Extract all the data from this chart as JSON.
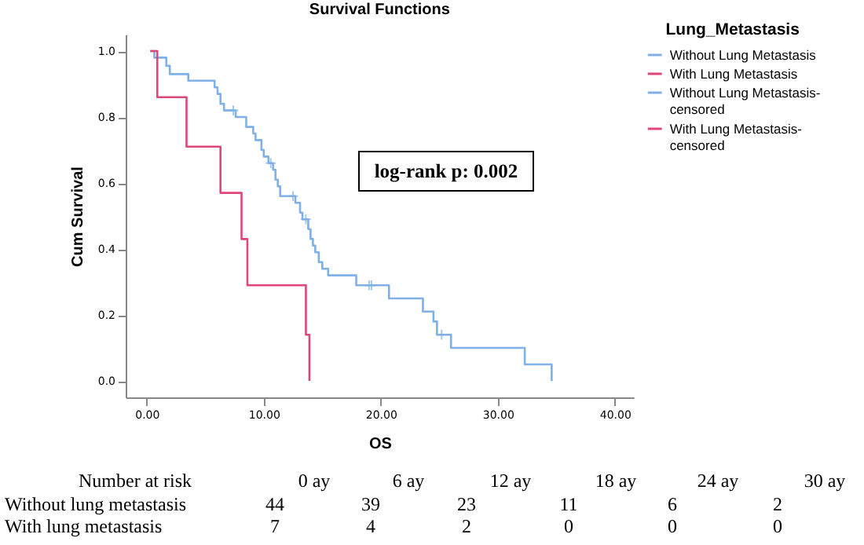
{
  "chart_data": {
    "type": "step",
    "title": "Survival Functions",
    "xlabel": "OS",
    "ylabel": "Cum Survival",
    "legend_title": "Lung_Metastasis",
    "legend": "top right",
    "grid": false,
    "xlim": [
      -1.8,
      41.6
    ],
    "xticks": [
      {
        "value": 0,
        "label": "0.00"
      },
      {
        "value": 10,
        "label": "10.00"
      },
      {
        "value": 20,
        "label": "20.00"
      },
      {
        "value": 30,
        "label": "30.00"
      },
      {
        "value": 40,
        "label": "40.00"
      }
    ],
    "ylim": [
      -0.05,
      1.05
    ],
    "yticks": [
      {
        "value": 0,
        "label": "0.0"
      },
      {
        "value": 0.2,
        "label": "0.2"
      },
      {
        "value": 0.4,
        "label": "0.4"
      },
      {
        "value": 0.6,
        "label": "0.6"
      },
      {
        "value": 0.8,
        "label": "0.8"
      },
      {
        "value": 1,
        "label": "1.0"
      }
    ],
    "series": [
      {
        "name": "Without Lung Metastasis",
        "color": "#7fb0e8",
        "x": [
          0.3,
          0.65,
          1.67,
          1.97,
          3.55,
          5.8,
          6.05,
          6.3,
          6.6,
          7.6,
          8.5,
          9.1,
          9.3,
          9.8,
          10.0,
          10.4,
          10.8,
          11.0,
          11.2,
          11.4,
          12.7,
          13.1,
          13.3,
          13.8,
          14.0,
          14.2,
          14.4,
          14.7,
          15.0,
          15.5,
          17.9,
          20.7,
          23.6,
          24.5,
          24.8,
          26.0,
          32.3,
          34.6
        ],
        "values": [
          1.0,
          0.98,
          0.955,
          0.93,
          0.91,
          0.89,
          0.87,
          0.84,
          0.82,
          0.8,
          0.77,
          0.75,
          0.73,
          0.7,
          0.68,
          0.66,
          0.64,
          0.61,
          0.59,
          0.56,
          0.54,
          0.51,
          0.49,
          0.46,
          0.43,
          0.41,
          0.39,
          0.36,
          0.34,
          0.32,
          0.29,
          0.25,
          0.21,
          0.18,
          0.14,
          0.1,
          0.05,
          0.0
        ]
      },
      {
        "name": "With Lung Metastasis",
        "color": "#e0457b",
        "x": [
          0.3,
          0.9,
          3.4,
          6.3,
          8.1,
          8.6,
          13.6,
          13.9
        ],
        "values": [
          1.0,
          0.86,
          0.71,
          0.57,
          0.43,
          0.29,
          0.14,
          0.0
        ]
      },
      {
        "name": "Without Lung Metastasis-censored",
        "type": "scatter",
        "marker": "cross",
        "color": "#7fb0e8",
        "x": [
          7.4,
          10.6,
          12.5,
          13.6,
          19.0,
          19.2,
          25.2
        ],
        "values": [
          0.82,
          0.66,
          0.56,
          0.49,
          0.29,
          0.29,
          0.14
        ]
      },
      {
        "name": "With Lung Metastasis-censored",
        "type": "scatter",
        "marker": "cross",
        "color": "#e0457b"
      }
    ],
    "annotations": [
      "log-rank p: 0.002",
      "Number at risk",
      "0 ay",
      "6 ay",
      "12 ay",
      "18 ay",
      "24 ay",
      "30 ay",
      "Without lung metastasis",
      "44",
      "39",
      "23",
      "11",
      "6",
      "2",
      "With lung metastasis",
      "7",
      "4",
      "2",
      "0",
      "0",
      "0"
    ]
  }
}
